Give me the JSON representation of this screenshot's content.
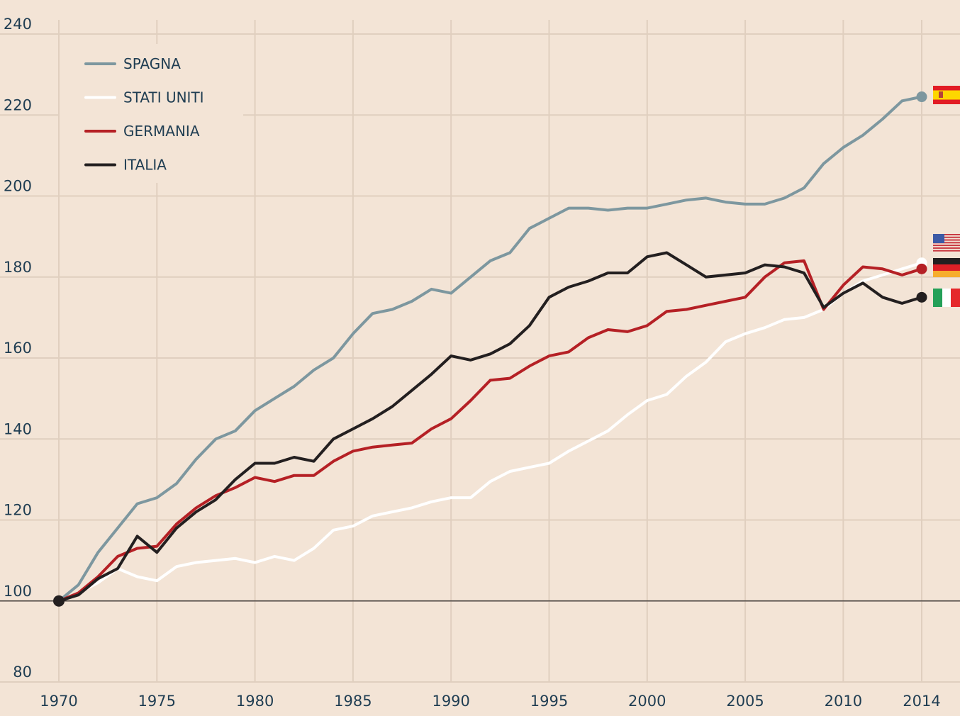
{
  "chart_data": {
    "type": "line",
    "title": "",
    "xlabel": "",
    "ylabel": "",
    "xlim": [
      1970,
      2014
    ],
    "ylim": [
      80,
      240
    ],
    "yticks": [
      80,
      100,
      120,
      140,
      160,
      180,
      200,
      220,
      240
    ],
    "xticks": [
      1970,
      1975,
      1980,
      1985,
      1990,
      1995,
      2000,
      2005,
      2010,
      2014
    ],
    "baseline": 100,
    "grid": true,
    "legend_position": "top-left",
    "x": [
      1970,
      1971,
      1972,
      1973,
      1974,
      1975,
      1976,
      1977,
      1978,
      1979,
      1980,
      1981,
      1982,
      1983,
      1984,
      1985,
      1986,
      1987,
      1988,
      1989,
      1990,
      1991,
      1992,
      1993,
      1994,
      1995,
      1996,
      1997,
      1998,
      1999,
      2000,
      2001,
      2002,
      2003,
      2004,
      2005,
      2006,
      2007,
      2008,
      2009,
      2010,
      2011,
      2012,
      2013,
      2014
    ],
    "series": [
      {
        "name": "SPAGNA",
        "color": "#7d979f",
        "flag": "spain",
        "values": [
          100,
          104,
          112,
          118,
          124,
          125.5,
          129,
          135,
          140,
          142,
          147,
          150,
          153,
          157,
          160,
          166,
          171,
          172,
          174,
          177,
          176,
          180,
          184,
          186,
          192,
          194.5,
          197,
          197,
          196.5,
          197,
          197,
          198,
          199,
          199.5,
          198.5,
          198,
          198,
          199.5,
          202,
          208,
          212,
          215,
          219,
          223.5,
          224.5
        ]
      },
      {
        "name": "STATI UNITI",
        "color": "#ffffff",
        "flag": "usa",
        "values": [
          100,
          102,
          104.5,
          108,
          106,
          105,
          108.5,
          109.5,
          110,
          110.5,
          109.5,
          111,
          110,
          113,
          117.5,
          118.5,
          121,
          122,
          123,
          124.5,
          125.5,
          125.5,
          129.5,
          132,
          133,
          134,
          137,
          139.5,
          142,
          146,
          149.5,
          151,
          155.5,
          159,
          164,
          166,
          167.5,
          169.5,
          170,
          172,
          176,
          179,
          180.5,
          182,
          183.5
        ]
      },
      {
        "name": "GERMANIA",
        "color": "#b52025",
        "flag": "germany",
        "values": [
          100,
          102,
          106,
          111,
          113,
          113.5,
          119,
          123,
          126,
          128,
          130.5,
          129.5,
          131,
          131,
          134.5,
          137,
          138,
          138.5,
          139,
          142.5,
          145,
          149.5,
          154.5,
          155,
          158,
          160.5,
          161.5,
          165,
          167,
          166.5,
          168,
          171.5,
          172,
          173,
          174,
          175,
          180,
          183.5,
          184,
          172,
          178,
          182.5,
          182,
          180.5,
          182
        ]
      },
      {
        "name": "ITALIA",
        "color": "#231f20",
        "flag": "italy",
        "values": [
          100,
          101.5,
          105.5,
          108,
          116,
          112,
          118,
          122,
          125,
          130,
          134,
          134,
          135.5,
          134.5,
          140,
          142.5,
          145,
          148,
          152,
          156,
          160.5,
          159.5,
          161,
          163.5,
          168,
          175,
          177.5,
          179,
          181,
          181,
          185,
          186,
          183,
          180,
          180.5,
          181,
          183,
          182.5,
          181,
          172.5,
          176,
          178.5,
          175,
          173.5,
          175
        ]
      }
    ]
  },
  "colors": {
    "background": "#f3e4d6",
    "grid": "#e0cfbf",
    "text": "#1f3d52",
    "baseline": "#231f20"
  }
}
